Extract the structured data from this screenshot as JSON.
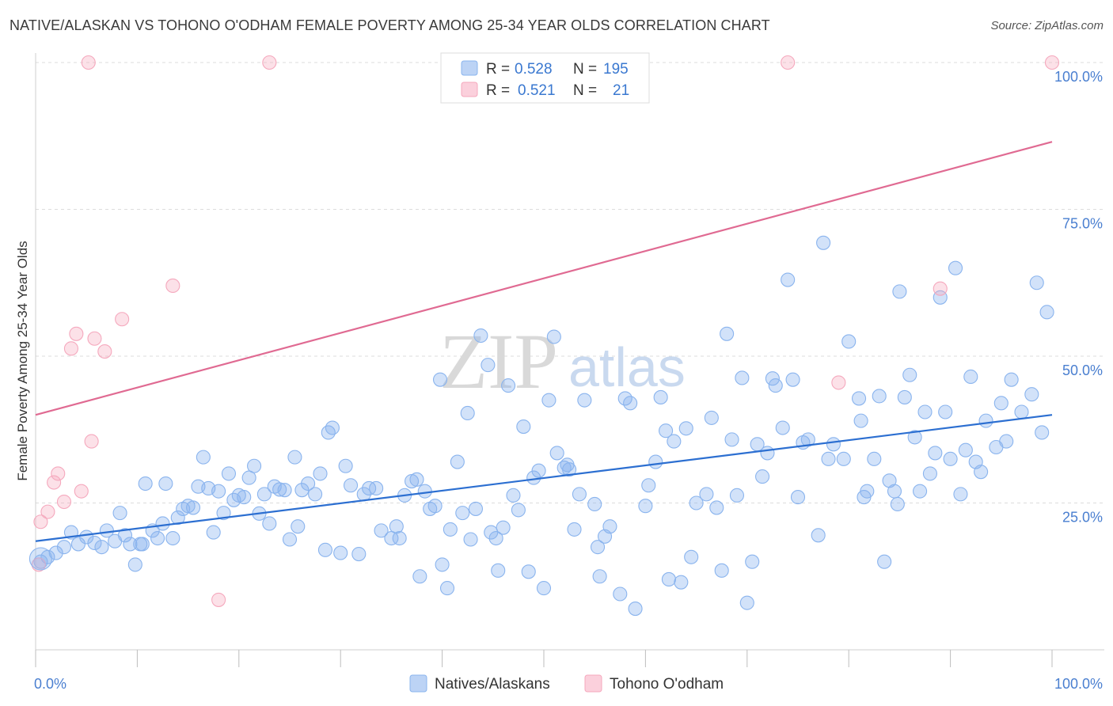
{
  "title": "NATIVE/ALASKAN VS TOHONO O'ODHAM FEMALE POVERTY AMONG 25-34 YEAR OLDS CORRELATION CHART",
  "source": "Source: ZipAtlas.com",
  "watermark": {
    "zip": "ZIP",
    "atlas": "atlas"
  },
  "chart_data": {
    "type": "scatter",
    "xlabel": "",
    "ylabel": "Female Poverty Among 25-34 Year Olds",
    "xlim": [
      0,
      100
    ],
    "ylim": [
      0,
      100
    ],
    "x_tick_labels": [
      {
        "v": 0,
        "label": "0.0%"
      },
      {
        "v": 100,
        "label": "100.0%"
      }
    ],
    "y_tick_labels": [
      {
        "v": 25,
        "label": "25.0%"
      },
      {
        "v": 50,
        "label": "50.0%"
      },
      {
        "v": 75,
        "label": "75.0%"
      },
      {
        "v": 100,
        "label": "100.0%"
      }
    ],
    "grid": true,
    "legend_position": "top-center",
    "series": [
      {
        "name": "Natives/Alaskans",
        "color": "#8ab4ee",
        "line_color": "#2c6fd1",
        "r": "0.528",
        "n": "195",
        "trend": {
          "x0": 0,
          "y0": 18.5,
          "x1": 100,
          "y1": 40.0
        },
        "points": [
          [
            0.5,
            15
          ],
          [
            1.2,
            15.8
          ],
          [
            2,
            16.5
          ],
          [
            2.8,
            17.5
          ],
          [
            3.5,
            20
          ],
          [
            4.2,
            18
          ],
          [
            5,
            19.2
          ],
          [
            5.8,
            18.2
          ],
          [
            6.5,
            17.5
          ],
          [
            7,
            20.3
          ],
          [
            7.8,
            18.5
          ],
          [
            8.3,
            23.3
          ],
          [
            8.8,
            19.5
          ],
          [
            9.3,
            18
          ],
          [
            9.8,
            14.5
          ],
          [
            10.3,
            18
          ],
          [
            10.5,
            18
          ],
          [
            10.8,
            28.3
          ],
          [
            11.5,
            20.3
          ],
          [
            12,
            19
          ],
          [
            12.5,
            21.5
          ],
          [
            12.8,
            28.3
          ],
          [
            13.5,
            19
          ],
          [
            14,
            22.5
          ],
          [
            14.5,
            24
          ],
          [
            15,
            24.5
          ],
          [
            15.5,
            24.2
          ],
          [
            16,
            27.8
          ],
          [
            16.5,
            32.8
          ],
          [
            17,
            27.5
          ],
          [
            17.5,
            20
          ],
          [
            18,
            27
          ],
          [
            18.5,
            23.3
          ],
          [
            19,
            30
          ],
          [
            19.5,
            25.5
          ],
          [
            20,
            26.3
          ],
          [
            20.5,
            26
          ],
          [
            21,
            29.3
          ],
          [
            21.5,
            31.3
          ],
          [
            22,
            23.2
          ],
          [
            22.5,
            26.5
          ],
          [
            23,
            21.5
          ],
          [
            23.5,
            27.8
          ],
          [
            24,
            27.3
          ],
          [
            24.5,
            27.2
          ],
          [
            25,
            18.8
          ],
          [
            25.5,
            32.8
          ],
          [
            25.8,
            21
          ],
          [
            26.2,
            27.2
          ],
          [
            26.8,
            28.3
          ],
          [
            27.5,
            26.5
          ],
          [
            28,
            30
          ],
          [
            28.5,
            17
          ],
          [
            28.8,
            37
          ],
          [
            29.2,
            37.8
          ],
          [
            30,
            16.5
          ],
          [
            30.5,
            31.3
          ],
          [
            31,
            28
          ],
          [
            31.8,
            16.3
          ],
          [
            32.3,
            26.5
          ],
          [
            32.8,
            27.5
          ],
          [
            33.5,
            27.5
          ],
          [
            34,
            20.3
          ],
          [
            35,
            19
          ],
          [
            35.5,
            21
          ],
          [
            35.8,
            19
          ],
          [
            36.3,
            26.3
          ],
          [
            37,
            28.7
          ],
          [
            37.5,
            29
          ],
          [
            37.8,
            12.5
          ],
          [
            38.3,
            27
          ],
          [
            38.8,
            24
          ],
          [
            39.3,
            24.5
          ],
          [
            39.8,
            46
          ],
          [
            40,
            14.5
          ],
          [
            40.5,
            10.5
          ],
          [
            40.8,
            20.5
          ],
          [
            41.5,
            32
          ],
          [
            42,
            23.3
          ],
          [
            42.5,
            40.3
          ],
          [
            42.8,
            18.8
          ],
          [
            43.3,
            24
          ],
          [
            43.8,
            53.5
          ],
          [
            44.5,
            48.5
          ],
          [
            44.8,
            20
          ],
          [
            45.3,
            19
          ],
          [
            45.5,
            13.5
          ],
          [
            46,
            20.8
          ],
          [
            46.5,
            45
          ],
          [
            47,
            26.3
          ],
          [
            47.5,
            23.8
          ],
          [
            48,
            38
          ],
          [
            48.5,
            13.3
          ],
          [
            49,
            29.3
          ],
          [
            49.5,
            30.5
          ],
          [
            50,
            10.5
          ],
          [
            50.5,
            42.5
          ],
          [
            51,
            53.3
          ],
          [
            51.3,
            33.5
          ],
          [
            52,
            31
          ],
          [
            52.3,
            31.5
          ],
          [
            52.5,
            30.7
          ],
          [
            53,
            20.5
          ],
          [
            53.5,
            26.5
          ],
          [
            54,
            42.5
          ],
          [
            55,
            24.8
          ],
          [
            55.3,
            17.5
          ],
          [
            55.5,
            12.5
          ],
          [
            56,
            19.3
          ],
          [
            56.5,
            21
          ],
          [
            57.5,
            9.5
          ],
          [
            58,
            42.8
          ],
          [
            58.5,
            42
          ],
          [
            59,
            7
          ],
          [
            60,
            24.5
          ],
          [
            60.3,
            28
          ],
          [
            61,
            32
          ],
          [
            61.5,
            43
          ],
          [
            62,
            37.3
          ],
          [
            62.3,
            12
          ],
          [
            62.8,
            35.5
          ],
          [
            63.5,
            11.5
          ],
          [
            64,
            37.7
          ],
          [
            64.5,
            15.8
          ],
          [
            65,
            25
          ],
          [
            66,
            26.5
          ],
          [
            66.5,
            39.5
          ],
          [
            67,
            24.2
          ],
          [
            67.5,
            13.5
          ],
          [
            68,
            53.8
          ],
          [
            68.5,
            35.8
          ],
          [
            69,
            26.3
          ],
          [
            69.5,
            46.3
          ],
          [
            70,
            8
          ],
          [
            70.5,
            15
          ],
          [
            71,
            35
          ],
          [
            71.5,
            29.5
          ],
          [
            72,
            33.5
          ],
          [
            72.5,
            46.2
          ],
          [
            72.8,
            45
          ],
          [
            73.5,
            37.8
          ],
          [
            74,
            63
          ],
          [
            74.5,
            46
          ],
          [
            75,
            26
          ],
          [
            75.5,
            35.3
          ],
          [
            76,
            35.8
          ],
          [
            77,
            19.5
          ],
          [
            77.5,
            69.3
          ],
          [
            78,
            32.5
          ],
          [
            78.5,
            35
          ],
          [
            79.5,
            32.5
          ],
          [
            80,
            52.5
          ],
          [
            81,
            42.8
          ],
          [
            81.2,
            39
          ],
          [
            81.5,
            26
          ],
          [
            81.8,
            27
          ],
          [
            82.5,
            32.5
          ],
          [
            83,
            43.2
          ],
          [
            83.5,
            15
          ],
          [
            84,
            28.8
          ],
          [
            84.5,
            27
          ],
          [
            84.8,
            24.8
          ],
          [
            85,
            61
          ],
          [
            85.5,
            43
          ],
          [
            86,
            46.8
          ],
          [
            86.5,
            36.2
          ],
          [
            87,
            27
          ],
          [
            87.5,
            40.5
          ],
          [
            88,
            30
          ],
          [
            88.5,
            33.5
          ],
          [
            89,
            60
          ],
          [
            89.5,
            40.5
          ],
          [
            90,
            32.5
          ],
          [
            90.5,
            65
          ],
          [
            91,
            26.5
          ],
          [
            91.5,
            34
          ],
          [
            92,
            46.5
          ],
          [
            92.5,
            32
          ],
          [
            93,
            30.3
          ],
          [
            93.5,
            39
          ],
          [
            94.5,
            34.5
          ],
          [
            95,
            42
          ],
          [
            95.5,
            35.5
          ],
          [
            96,
            46
          ],
          [
            97,
            40.5
          ],
          [
            98,
            43.5
          ],
          [
            98.5,
            62.5
          ],
          [
            99,
            37
          ],
          [
            99.5,
            57.5
          ]
        ]
      },
      {
        "name": "Tohono O'odham",
        "color": "#f5a8bd",
        "line_color": "#e06a92",
        "r": "0.521",
        "n": "21",
        "trend": {
          "x0": 0,
          "y0": 40.0,
          "x1": 100,
          "y1": 86.5
        },
        "points": [
          [
            0.5,
            21.8
          ],
          [
            1.2,
            23.5
          ],
          [
            1.8,
            28.5
          ],
          [
            2.2,
            30
          ],
          [
            2.8,
            25.2
          ],
          [
            3.5,
            51.3
          ],
          [
            4,
            53.8
          ],
          [
            4.5,
            27
          ],
          [
            5.2,
            100
          ],
          [
            5.5,
            35.5
          ],
          [
            5.8,
            53
          ],
          [
            6.8,
            50.8
          ],
          [
            8.5,
            56.3
          ],
          [
            13.5,
            62
          ],
          [
            18,
            8.5
          ],
          [
            23,
            100
          ],
          [
            74,
            100
          ],
          [
            79,
            45.5
          ],
          [
            89,
            61.5
          ],
          [
            100,
            100
          ],
          [
            0.3,
            14.5
          ]
        ]
      }
    ]
  }
}
